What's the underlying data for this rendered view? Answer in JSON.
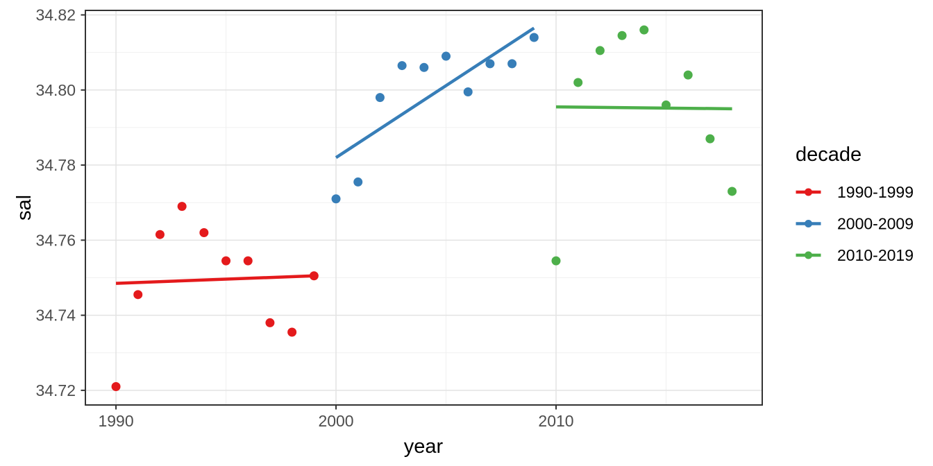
{
  "chart_data": {
    "type": "scatter",
    "title": "",
    "xlabel": "year",
    "ylabel": "sal",
    "legend_title": "decade",
    "legend_position": "right",
    "grid": true,
    "xlim": [
      1988.61,
      2019.37
    ],
    "ylim": [
      34.7161,
      34.8212
    ],
    "x_major_ticks": [
      1990,
      2000,
      2010
    ],
    "x_tick_labels": [
      "1990",
      "2000",
      "2010"
    ],
    "x_minor_gridlines": [
      1995,
      2005,
      2015
    ],
    "y_major_ticks": [
      34.72,
      34.74,
      34.76,
      34.78,
      34.8,
      34.82
    ],
    "y_tick_labels": [
      "34.72",
      "34.74",
      "34.76",
      "34.78",
      "34.80",
      "34.82"
    ],
    "y_minor_gridlines": [
      34.73,
      34.75,
      34.77,
      34.79,
      34.81
    ],
    "series": [
      {
        "name": "1990-1999",
        "color": "#E41A1C",
        "points": [
          [
            1990,
            34.721
          ],
          [
            1991,
            34.7455
          ],
          [
            1992,
            34.7615
          ],
          [
            1993,
            34.769
          ],
          [
            1994,
            34.762
          ],
          [
            1995,
            34.7545
          ],
          [
            1996,
            34.7545
          ],
          [
            1997,
            34.738
          ],
          [
            1998,
            34.7355
          ],
          [
            1999,
            34.7505
          ]
        ],
        "trend": {
          "x": [
            1990,
            1999
          ],
          "y": [
            34.7485,
            34.7505
          ]
        }
      },
      {
        "name": "2000-2009",
        "color": "#377EB8",
        "points": [
          [
            2000,
            34.771
          ],
          [
            2001,
            34.7755
          ],
          [
            2002,
            34.798
          ],
          [
            2003,
            34.8065
          ],
          [
            2004,
            34.806
          ],
          [
            2005,
            34.809
          ],
          [
            2006,
            34.7995
          ],
          [
            2007,
            34.807
          ],
          [
            2008,
            34.807
          ],
          [
            2009,
            34.814
          ]
        ],
        "trend": {
          "x": [
            2000,
            2009
          ],
          "y": [
            34.782,
            34.8165
          ]
        }
      },
      {
        "name": "2010-2019",
        "color": "#4DAF4A",
        "points": [
          [
            2010,
            34.7545
          ],
          [
            2011,
            34.802
          ],
          [
            2012,
            34.8105
          ],
          [
            2013,
            34.8145
          ],
          [
            2014,
            34.816
          ],
          [
            2015,
            34.796
          ],
          [
            2016,
            34.804
          ],
          [
            2017,
            34.787
          ],
          [
            2018,
            34.773
          ]
        ],
        "trend": {
          "x": [
            2010,
            2018
          ],
          "y": [
            34.7955,
            34.795
          ]
        }
      }
    ],
    "style_colors": {
      "grid_major": "#E3E3E3",
      "grid_minor": "#F0F0F0",
      "panel_border": "#333333",
      "tick_mark": "#333333",
      "tick_text": "#4d4d4d"
    }
  }
}
